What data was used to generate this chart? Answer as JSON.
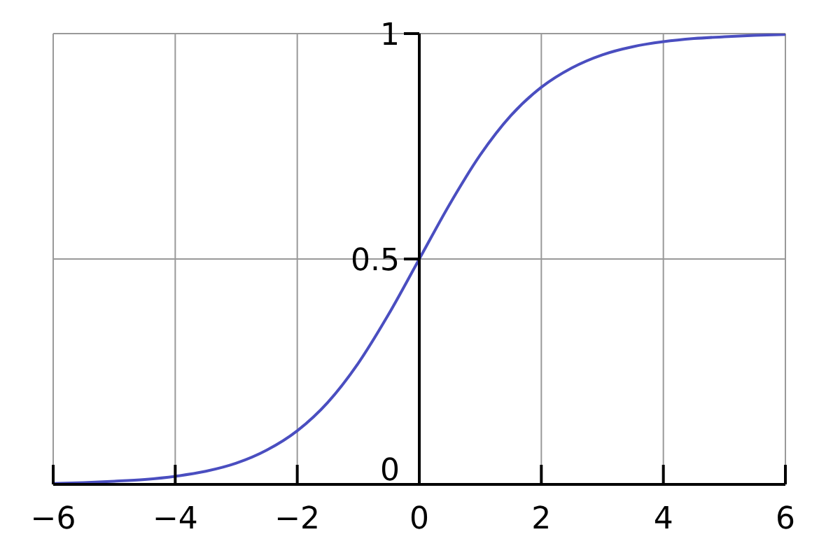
{
  "chart_data": {
    "type": "line",
    "x": [
      -6,
      -5.5,
      -5,
      -4.5,
      -4,
      -3.5,
      -3,
      -2.5,
      -2,
      -1.5,
      -1,
      -0.5,
      0,
      0.5,
      1,
      1.5,
      2,
      2.5,
      3,
      3.5,
      4,
      4.5,
      5,
      5.5,
      6
    ],
    "series": [
      {
        "color": "#4a4ec0",
        "values": [
          0.002,
          0.004,
          0.007,
          0.011,
          0.018,
          0.029,
          0.047,
          0.076,
          0.119,
          0.182,
          0.269,
          0.378,
          0.5,
          0.622,
          0.731,
          0.818,
          0.881,
          0.924,
          0.953,
          0.971,
          0.982,
          0.989,
          0.993,
          0.996,
          0.998
        ]
      }
    ],
    "xlim": [
      -6,
      6
    ],
    "xticks": [
      {
        "value": -6,
        "label": "−6"
      },
      {
        "value": -4,
        "label": "−4"
      },
      {
        "value": -2,
        "label": "−2"
      },
      0,
      2,
      4,
      6
    ],
    "ylim": [
      0,
      1
    ],
    "yticks": [
      0,
      0.5,
      1
    ],
    "grid": true
  }
}
